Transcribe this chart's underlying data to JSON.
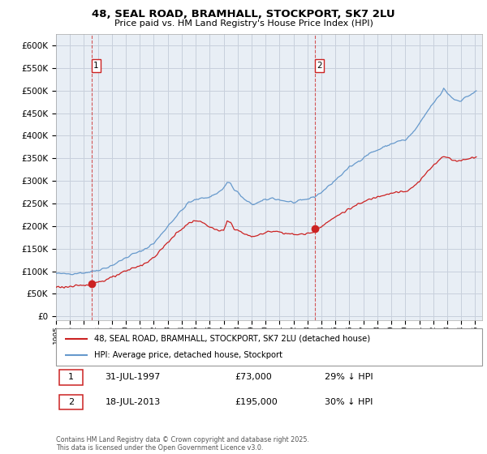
{
  "title1": "48, SEAL ROAD, BRAMHALL, STOCKPORT, SK7 2LU",
  "title2": "Price paid vs. HM Land Registry's House Price Index (HPI)",
  "yticks": [
    0,
    50000,
    100000,
    150000,
    200000,
    250000,
    300000,
    350000,
    400000,
    450000,
    500000,
    550000,
    600000
  ],
  "ylim": [
    -8000,
    625000
  ],
  "xlim_start": 1995.0,
  "xlim_end": 2025.5,
  "plot_bg_color": "#e8eef5",
  "grid_color": "#c8d0dc",
  "hpi_color": "#6699cc",
  "price_color": "#cc2222",
  "sale1_date": 1997.58,
  "sale1_price": 73000,
  "sale1_label": "1",
  "sale2_date": 2013.55,
  "sale2_price": 195000,
  "sale2_label": "2",
  "legend_line1": "48, SEAL ROAD, BRAMHALL, STOCKPORT, SK7 2LU (detached house)",
  "legend_line2": "HPI: Average price, detached house, Stockport",
  "info1_num": "1",
  "info1_date": "31-JUL-1997",
  "info1_price": "£73,000",
  "info1_hpi": "29% ↓ HPI",
  "info2_num": "2",
  "info2_date": "18-JUL-2013",
  "info2_price": "£195,000",
  "info2_hpi": "30% ↓ HPI",
  "footer": "Contains HM Land Registry data © Crown copyright and database right 2025.\nThis data is licensed under the Open Government Licence v3.0."
}
